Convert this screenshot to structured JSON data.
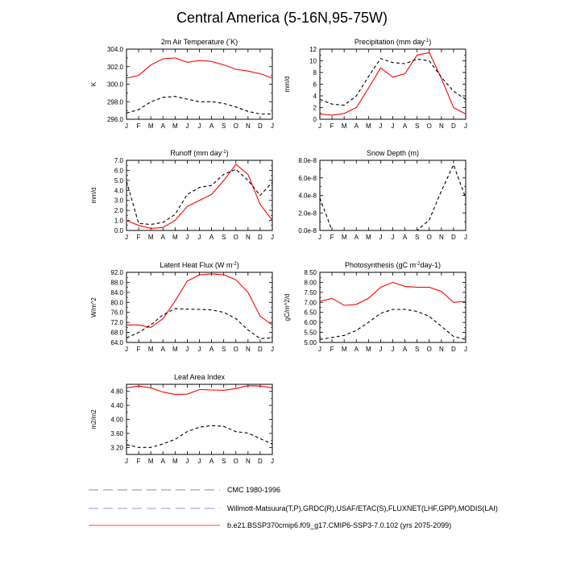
{
  "title": "Central America (5-16N,95-75W)",
  "months": [
    "J",
    "F",
    "M",
    "A",
    "M",
    "J",
    "J",
    "A",
    "S",
    "O",
    "N",
    "D",
    "J"
  ],
  "colors": {
    "model": "#ff0000",
    "obs": "#000000",
    "obs_legend": "#9999dd"
  },
  "legend": [
    {
      "label": "CMC 1980-1996",
      "color": "#8888aa",
      "dash": "dash"
    },
    {
      "label": "Willmott-Matsuura(T,P),GRDC(R),USAF/ETAC(S),FLUXNET(LHF,GPP),MODIS(LAI)",
      "color": "#9999dd",
      "dash": "dash"
    },
    {
      "label": "b.e21.BSSP370cmip6.f09_g17.CMIP6-SSP3-7.0.102 (yrs 2075-2099)",
      "color": "#ff4444",
      "dash": "solid"
    }
  ],
  "chart_data": [
    {
      "type": "line",
      "title": "2m Air Temperature (°K)",
      "ylabel": "K",
      "ylim": [
        296.0,
        304.0
      ],
      "yticks": [
        "296.0",
        "298.0",
        "300.0",
        "302.0",
        "304.0"
      ],
      "x": [
        "J",
        "F",
        "M",
        "A",
        "M",
        "J",
        "J",
        "A",
        "S",
        "O",
        "N",
        "D",
        "J"
      ],
      "series": [
        {
          "values": [
            300.7,
            301.0,
            302.2,
            302.9,
            303.0,
            302.5,
            302.7,
            302.6,
            302.2,
            301.7,
            301.5,
            301.2,
            300.7
          ],
          "style": "model"
        },
        {
          "values": [
            296.7,
            297.1,
            298.0,
            298.5,
            298.6,
            298.3,
            298.0,
            298.0,
            297.8,
            297.4,
            296.9,
            296.6,
            296.6
          ],
          "style": "obs"
        }
      ]
    },
    {
      "type": "line",
      "title": "Precipitation (mm day-1)",
      "ylabel": "mm/d",
      "ylim": [
        0,
        12
      ],
      "yticks": [
        "0",
        "2",
        "4",
        "6",
        "8",
        "10",
        "12"
      ],
      "x": [
        "J",
        "F",
        "M",
        "A",
        "M",
        "J",
        "J",
        "A",
        "S",
        "O",
        "N",
        "D",
        "J"
      ],
      "series": [
        {
          "values": [
            0.9,
            0.7,
            1.0,
            2.0,
            5.3,
            8.8,
            7.2,
            7.8,
            11.0,
            11.4,
            7.0,
            2.0,
            0.9
          ],
          "style": "model"
        },
        {
          "values": [
            3.4,
            2.6,
            2.4,
            4.0,
            7.3,
            10.4,
            9.7,
            9.5,
            10.3,
            10.0,
            7.2,
            4.8,
            3.4
          ],
          "style": "obs"
        }
      ]
    },
    {
      "type": "line",
      "title": "Runoff (mm day-1)",
      "ylabel": "mm/d",
      "ylim": [
        0.0,
        7.0
      ],
      "yticks": [
        "0.0",
        "1.0",
        "2.0",
        "3.0",
        "4.0",
        "5.0",
        "6.0",
        "7.0"
      ],
      "x": [
        "J",
        "F",
        "M",
        "A",
        "M",
        "J",
        "J",
        "A",
        "S",
        "O",
        "N",
        "D",
        "J"
      ],
      "series": [
        {
          "values": [
            1.0,
            0.5,
            0.2,
            0.3,
            1.0,
            2.4,
            3.0,
            3.6,
            5.0,
            6.6,
            5.6,
            2.6,
            1.0
          ],
          "style": "model"
        },
        {
          "values": [
            4.9,
            0.7,
            0.6,
            0.8,
            1.6,
            3.6,
            4.3,
            4.5,
            5.6,
            6.1,
            5.0,
            3.5,
            4.8
          ],
          "style": "obs"
        }
      ]
    },
    {
      "type": "line",
      "title": "Snow Depth (m)",
      "ylabel": "",
      "ylim": [
        0,
        8e-08
      ],
      "yticks": [
        "0.0e-8",
        "2.0e-8",
        "4.0e-8",
        "6.0e-8",
        "8.0e-8"
      ],
      "x": [
        "J",
        "F",
        "M",
        "A",
        "M",
        "J",
        "J",
        "A",
        "S",
        "O",
        "N",
        "D",
        "J"
      ],
      "series": [
        {
          "values": [
            3.7e-08,
            0,
            0,
            0,
            0,
            0,
            0,
            0,
            0,
            1.2e-08,
            4.5e-08,
            7.5e-08,
            3.7e-08
          ],
          "style": "obs"
        }
      ]
    },
    {
      "type": "line",
      "title": "Latent Heat Flux (W m-2)",
      "ylabel": "W/m^2",
      "ylim": [
        64.0,
        92.0
      ],
      "yticks": [
        "64.0",
        "68.0",
        "72.0",
        "76.0",
        "80.0",
        "84.0",
        "88.0",
        "92.0"
      ],
      "x": [
        "J",
        "F",
        "M",
        "A",
        "M",
        "J",
        "J",
        "A",
        "S",
        "O",
        "N",
        "D",
        "J"
      ],
      "series": [
        {
          "values": [
            71.0,
            71.0,
            70.0,
            73.5,
            80.5,
            88.5,
            91.0,
            91.4,
            91.0,
            89.0,
            84.0,
            74.5,
            71.0
          ],
          "style": "model"
        },
        {
          "values": [
            65.8,
            68.0,
            71.0,
            75.0,
            77.5,
            77.3,
            77.2,
            77.0,
            76.0,
            73.5,
            69.0,
            65.5,
            65.8
          ],
          "style": "obs"
        }
      ]
    },
    {
      "type": "line",
      "title": "Photosynthesis (gC m-2day-1)",
      "ylabel": "gC/m^2/d",
      "ylim": [
        5.0,
        8.5
      ],
      "yticks": [
        "5.00",
        "5.50",
        "6.00",
        "6.50",
        "7.00",
        "7.50",
        "8.00",
        "8.50"
      ],
      "x": [
        "J",
        "F",
        "M",
        "A",
        "M",
        "J",
        "J",
        "A",
        "S",
        "O",
        "N",
        "D",
        "J"
      ],
      "series": [
        {
          "values": [
            7.05,
            7.2,
            6.85,
            6.9,
            7.2,
            7.75,
            8.0,
            7.8,
            7.75,
            7.75,
            7.55,
            7.0,
            7.05
          ],
          "style": "model"
        },
        {
          "values": [
            5.15,
            5.25,
            5.35,
            5.6,
            6.0,
            6.45,
            6.65,
            6.65,
            6.55,
            6.3,
            5.8,
            5.3,
            5.15
          ],
          "style": "obs"
        }
      ]
    },
    {
      "type": "line",
      "title": "Leaf Area Index",
      "ylabel": "m2/m2",
      "ylim": [
        3.0,
        5.0
      ],
      "yticks": [
        "3.20",
        "3.60",
        "4.00",
        "4.40",
        "4.80"
      ],
      "x": [
        "J",
        "F",
        "M",
        "A",
        "M",
        "J",
        "J",
        "A",
        "S",
        "O",
        "N",
        "D",
        "J"
      ],
      "series": [
        {
          "values": [
            4.9,
            4.95,
            4.9,
            4.78,
            4.71,
            4.72,
            4.85,
            4.84,
            4.83,
            4.88,
            4.96,
            4.95,
            4.9
          ],
          "style": "model"
        },
        {
          "values": [
            3.28,
            3.2,
            3.2,
            3.3,
            3.43,
            3.65,
            3.78,
            3.82,
            3.8,
            3.65,
            3.61,
            3.45,
            3.3
          ],
          "style": "obs"
        }
      ]
    }
  ]
}
